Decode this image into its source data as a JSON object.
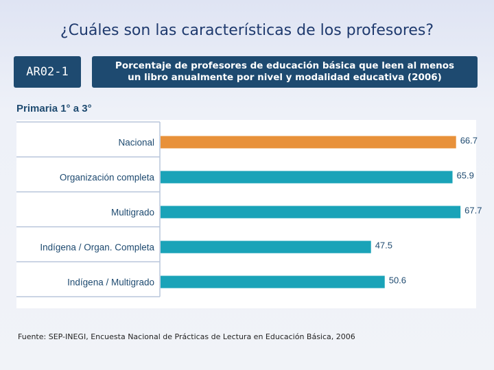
{
  "slide": {
    "title": "¿Cuáles son las características de los profesores?",
    "code": "AR02-1",
    "subtitle_line1": "Porcentaje de profesores de educación básica que leen al menos",
    "subtitle_line2": "un libro anualmente por nivel y modalidad educativa (2006)",
    "section_label": "Primaria 1° a 3°",
    "source": "Fuente: SEP-INEGI, Encuesta Nacional de Prácticas de Lectura en Educación Básica, 2006"
  },
  "chart_data": {
    "type": "bar",
    "orientation": "horizontal",
    "categories": [
      "Nacional",
      "Organización completa",
      "Multigrado",
      "Indígena / Organ. Completa",
      "Indígena / Multigrado"
    ],
    "values": [
      66.7,
      65.9,
      67.7,
      47.5,
      50.6
    ],
    "value_labels": [
      "66.7",
      "65.9",
      "67.7",
      "47.5",
      "50.6"
    ],
    "colors": [
      "#e8913a",
      "#1aa3b8",
      "#1aa3b8",
      "#1aa3b8",
      "#1aa3b8"
    ],
    "xlim": [
      0,
      70
    ],
    "grid": false
  }
}
